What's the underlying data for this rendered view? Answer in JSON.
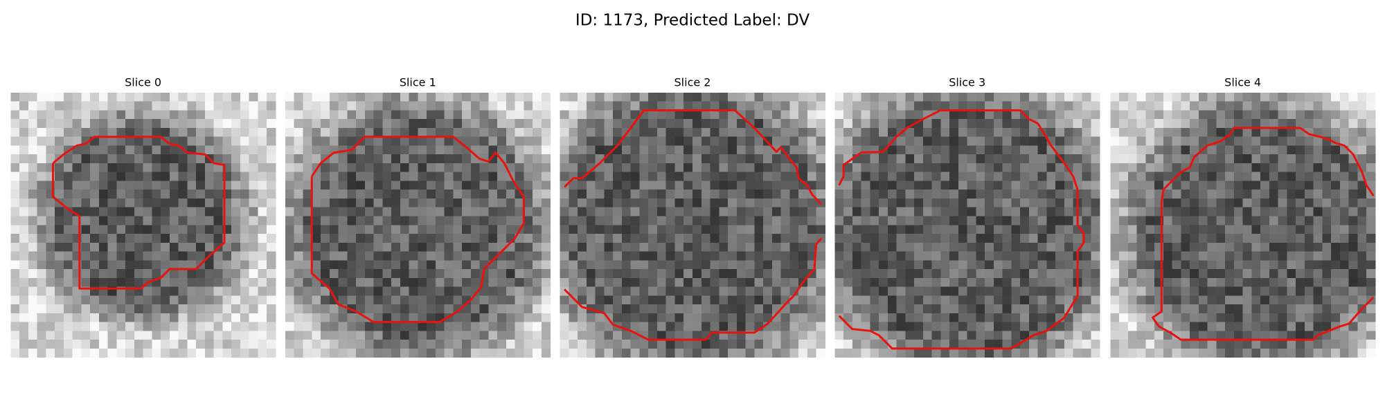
{
  "title": "ID: 1173, Predicted Label: DV",
  "panels": [
    {
      "title": "Slice 0"
    },
    {
      "title": "Slice 1"
    },
    {
      "title": "Slice 2"
    },
    {
      "title": "Slice 3"
    },
    {
      "title": "Slice 4"
    }
  ]
}
